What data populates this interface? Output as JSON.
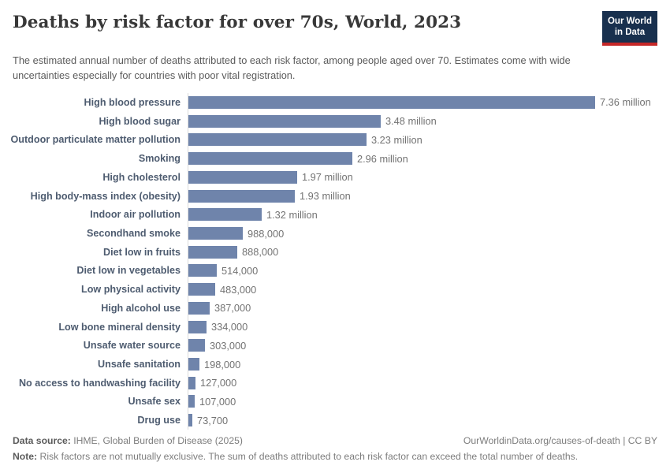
{
  "header": {
    "title": "Deaths by risk factor for over 70s, World, 2023",
    "subtitle": "The estimated annual number of deaths attributed to each risk factor, among people aged over 70. Estimates come with wide uncertainties especially for countries with poor vital registration.",
    "logo": {
      "line1": "Our World",
      "line2": "in Data"
    }
  },
  "chart_data": {
    "type": "bar",
    "orientation": "horizontal",
    "title": "Deaths by risk factor for over 70s, World, 2023",
    "xlabel": "",
    "ylabel": "",
    "grid": false,
    "legend": false,
    "xlim": [
      0,
      7360000
    ],
    "bar_color": "#6f84ab",
    "categories": [
      "High blood pressure",
      "High blood sugar",
      "Outdoor particulate matter pollution",
      "Smoking",
      "High cholesterol",
      "High body-mass index (obesity)",
      "Indoor air pollution",
      "Secondhand smoke",
      "Diet low in fruits",
      "Diet low in vegetables",
      "Low physical activity",
      "High alcohol use",
      "Low bone mineral density",
      "Unsafe water source",
      "Unsafe sanitation",
      "No access to handwashing facility",
      "Unsafe sex",
      "Drug use"
    ],
    "values": [
      7360000,
      3480000,
      3230000,
      2960000,
      1970000,
      1930000,
      1320000,
      988000,
      888000,
      514000,
      483000,
      387000,
      334000,
      303000,
      198000,
      127000,
      107000,
      73700
    ],
    "value_labels": [
      "7.36 million",
      "3.48 million",
      "3.23 million",
      "2.96 million",
      "1.97 million",
      "1.93 million",
      "1.32 million",
      "988,000",
      "888,000",
      "514,000",
      "483,000",
      "387,000",
      "334,000",
      "303,000",
      "198,000",
      "127,000",
      "107,000",
      "73,700"
    ]
  },
  "footer": {
    "datasource_label": "Data source:",
    "datasource_value": " IHME, Global Burden of Disease (2025)",
    "link": "OurWorldinData.org/causes-of-death | CC BY",
    "note_label": "Note:",
    "note_value": " Risk factors are not mutually exclusive. The sum of deaths attributed to each risk factor can exceed the total number of deaths."
  },
  "colors": {
    "bar": "#6f84ab",
    "category_label": "#4e5c70",
    "value_label": "#737373",
    "title": "#383838",
    "subtitle": "#5b5b5b",
    "logo_bg": "#18304e",
    "logo_stripe": "#c52727",
    "axis_line": "#dcdcdc"
  }
}
